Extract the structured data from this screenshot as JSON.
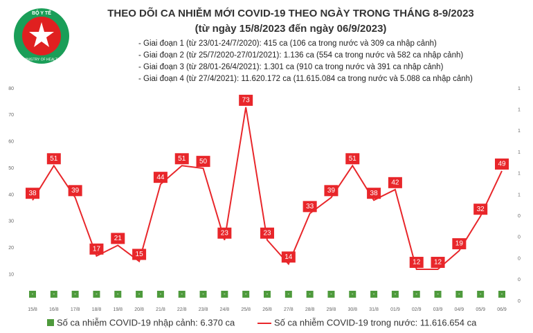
{
  "header": {
    "logo_top": "BỘ Y TẾ",
    "logo_bottom": "MINISTRY OF HEALTH"
  },
  "chart_data": {
    "type": "line",
    "title": "THEO DÕI CA NHIỄM MỚI COVID-19 THEO NGÀY TRONG THÁNG 8-9/2023",
    "subtitle": "(từ ngày 15/8/2023 đến ngày 06/9/2023)",
    "annotations": [
      "- Giai đoạn 1 (từ 23/01-24/7/2020): 415 ca (106 ca trong nước và 309 ca nhập cảnh)",
      "- Giai đoạn 2 (từ 25/7/2020-27/01/2021): 1.136 ca (554 ca trong nước và 582 ca nhập cảnh)",
      "- Giai đoạn 3 (từ 28/01-26/4/2021): 1.301 ca (910 ca trong nước và 391 ca nhập cảnh)",
      "- Giai đoạn 4 (từ 27/4/2021): 11.620.172 ca (11.615.084 ca trong nước và 5.088 ca nhập cảnh)"
    ],
    "categories": [
      "15/8",
      "16/8",
      "17/8",
      "18/8",
      "19/8",
      "20/8",
      "21/8",
      "22/8",
      "23/8",
      "24/8",
      "25/8",
      "26/8",
      "27/8",
      "28/8",
      "29/8",
      "30/8",
      "31/8",
      "01/9",
      "02/9",
      "03/9",
      "04/9",
      "05/9",
      "06/9"
    ],
    "series": [
      {
        "name": "Số ca nhiễm COVID-19 nhập cảnh: 6.370 ca",
        "color": "#4e9a3c",
        "axis": "y2",
        "values": [
          0,
          0,
          0,
          0,
          0,
          0,
          0,
          0,
          0,
          0,
          0,
          0,
          0,
          0,
          0,
          0,
          0,
          0,
          0,
          0,
          0,
          0,
          0
        ],
        "value_labels": [
          "-",
          "-",
          "-",
          "-",
          "-",
          "-",
          "-",
          "-",
          "-",
          "-",
          "-",
          "-",
          "-",
          "-",
          "-",
          "-",
          "-",
          "-",
          "-",
          "-",
          "-",
          "-",
          "-"
        ]
      },
      {
        "name": "Số ca nhiễm COVID-19 trong nước: 11.616.654 ca",
        "color": "#e8262a",
        "values": [
          38,
          51,
          39,
          17,
          21,
          15,
          44,
          51,
          50,
          23,
          73,
          23,
          14,
          33,
          39,
          51,
          38,
          42,
          12,
          12,
          19,
          32,
          49
        ]
      }
    ],
    "ylim": [
      0,
      80
    ],
    "yticks": [
      10,
      20,
      30,
      40,
      50,
      60,
      70,
      80
    ],
    "y2lim": [
      0,
      1
    ],
    "y2ticks": [
      {
        "value": 0,
        "label": "0"
      },
      {
        "value": 0.1,
        "label": "0"
      },
      {
        "value": 0.2,
        "label": "0"
      },
      {
        "value": 0.3,
        "label": "0"
      },
      {
        "value": 0.4,
        "label": "0"
      },
      {
        "value": 0.5,
        "label": "1"
      },
      {
        "value": 0.6,
        "label": "1"
      },
      {
        "value": 0.7,
        "label": "1"
      },
      {
        "value": 0.8,
        "label": "1"
      },
      {
        "value": 0.9,
        "label": "1"
      },
      {
        "value": 1,
        "label": "1"
      }
    ]
  }
}
